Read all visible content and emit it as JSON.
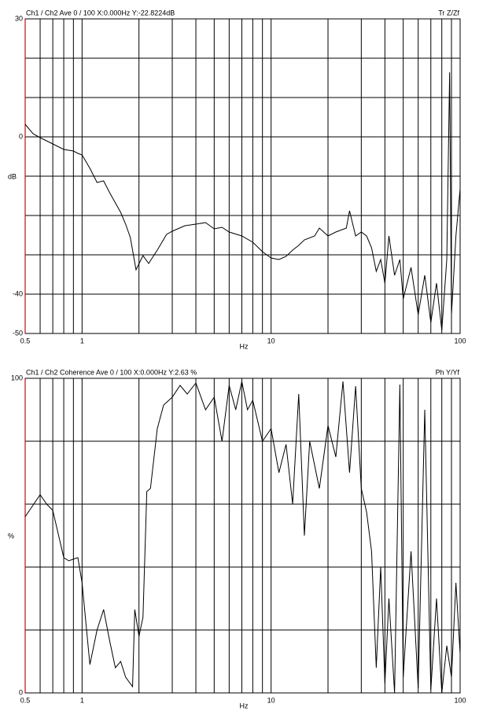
{
  "chart_data": [
    {
      "type": "line",
      "header": "Ch1 / Ch2  Ave 0 / 100  X:0.000Hz  Y:-22.8224dB",
      "header_right": "Tr Z/Zf",
      "y_label": "dB",
      "x_label": "Hz",
      "log_x": true,
      "color": "#000000",
      "xlim": [
        0.5,
        100
      ],
      "xticks": [
        0.5,
        1,
        10,
        100
      ],
      "xgrid": [
        0.6,
        0.7,
        0.8,
        0.9,
        2,
        3,
        4,
        5,
        6,
        7,
        8,
        9,
        20,
        30,
        40,
        50,
        60,
        70,
        80,
        90
      ],
      "ylim": [
        -50,
        30
      ],
      "yticks": [
        30,
        0,
        -40,
        -50
      ],
      "ygrid": [
        20,
        10,
        -10,
        -20,
        -30
      ],
      "x": [
        0.5,
        0.55,
        0.6,
        0.7,
        0.8,
        0.9,
        0.95,
        1.0,
        1.1,
        1.2,
        1.3,
        1.4,
        1.5,
        1.6,
        1.7,
        1.8,
        1.93,
        2.1,
        2.25,
        2.5,
        2.8,
        3.0,
        3.5,
        4.0,
        4.5,
        5,
        5.5,
        6,
        7,
        8,
        9,
        10,
        11,
        12,
        13,
        14,
        15,
        17,
        18,
        20,
        22,
        25,
        26,
        28,
        30,
        32,
        34,
        36,
        38,
        40,
        42,
        45,
        48,
        50,
        55,
        60,
        65,
        70,
        75,
        80,
        85,
        88,
        90,
        95,
        100
      ],
      "values": [
        3.2,
        0.8,
        -0.2,
        -1.8,
        -3.2,
        -3.6,
        -4.2,
        -4.6,
        -8,
        -11.6,
        -11.2,
        -14.2,
        -16.8,
        -19.2,
        -22.2,
        -25.6,
        -33.8,
        -30.2,
        -32.2,
        -28.8,
        -24.8,
        -24,
        -22.6,
        -22.2,
        -21.8,
        -23.4,
        -23,
        -24.2,
        -25.2,
        -26.8,
        -29.2,
        -30.8,
        -31.2,
        -30.4,
        -28.8,
        -27.6,
        -26.2,
        -25.2,
        -23.2,
        -25.2,
        -24.2,
        -23.2,
        -18.8,
        -25.2,
        -24.2,
        -25.2,
        -28.2,
        -34.2,
        -31.2,
        -37.2,
        -25.2,
        -35.2,
        -31.2,
        -41.2,
        -33.2,
        -45.2,
        -35.2,
        -47.2,
        -37.2,
        -49.2,
        -31.2,
        16.4,
        -45.2,
        -25.2,
        -13.2
      ]
    },
    {
      "type": "line",
      "header": "Ch1 / Ch2  Coherence Ave 0 / 100  X:0.000Hz  Y:2.63 %",
      "header_right": "Ph Y/Yf",
      "y_label": "%",
      "x_label": "Hz",
      "log_x": true,
      "color": "#000000",
      "xlim": [
        0.5,
        100
      ],
      "xticks": [
        0.5,
        1,
        10,
        100
      ],
      "xgrid": [
        0.6,
        0.7,
        0.8,
        0.9,
        2,
        3,
        4,
        5,
        6,
        7,
        8,
        9,
        20,
        30,
        40,
        50,
        60,
        70,
        80,
        90
      ],
      "ylim": [
        0,
        100
      ],
      "yticks": [
        100,
        0
      ],
      "ygrid": [
        80,
        60,
        40,
        20
      ],
      "x": [
        0.5,
        0.6,
        0.65,
        0.7,
        0.8,
        0.85,
        0.95,
        1.0,
        1.1,
        1.2,
        1.3,
        1.4,
        1.5,
        1.6,
        1.7,
        1.85,
        1.9,
        2.0,
        2.1,
        2.2,
        2.3,
        2.5,
        2.7,
        3.0,
        3.3,
        3.6,
        4.0,
        4.5,
        5,
        5.5,
        6,
        6.5,
        7,
        7.5,
        8,
        9,
        10,
        11,
        12,
        13,
        14,
        15,
        16,
        18,
        20,
        22,
        24,
        26,
        28,
        30,
        32,
        34,
        36,
        38,
        40,
        42,
        45,
        48,
        50,
        55,
        60,
        65,
        70,
        75,
        80,
        85,
        90,
        95,
        100
      ],
      "values": [
        56,
        63,
        60,
        58,
        43,
        42,
        43,
        35,
        9,
        20,
        26.5,
        16.5,
        8,
        10,
        5,
        2,
        26.5,
        18,
        24,
        64,
        65,
        84,
        91.5,
        94,
        97.75,
        95,
        98.5,
        90,
        94,
        80,
        97.75,
        90,
        99,
        90,
        93,
        80,
        84,
        70,
        79,
        60,
        95,
        50,
        80,
        65,
        85,
        75,
        99,
        70,
        97.5,
        65,
        57.5,
        45,
        8,
        40,
        3,
        30,
        0,
        98,
        5,
        45,
        1.5,
        90,
        1,
        30,
        0,
        15,
        5,
        35,
        12.5
      ]
    }
  ]
}
